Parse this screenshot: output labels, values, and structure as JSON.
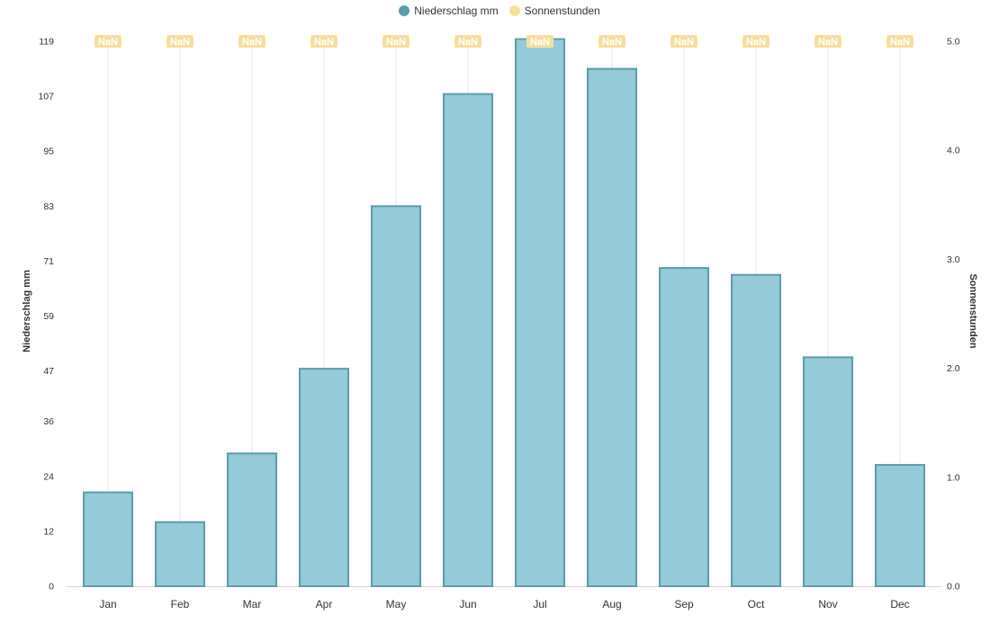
{
  "legend": {
    "items": [
      {
        "label": "Niederschlag mm",
        "color": "#5b9cad"
      },
      {
        "label": "Sonnenstunden",
        "color": "#f6df9b"
      }
    ]
  },
  "chart_data": {
    "type": "bar",
    "categories": [
      "Jan",
      "Feb",
      "Mar",
      "Apr",
      "May",
      "Jun",
      "Jul",
      "Aug",
      "Sep",
      "Oct",
      "Nov",
      "Dec"
    ],
    "series": [
      {
        "name": "Niederschlag mm",
        "type": "bar",
        "axis": "left",
        "values": [
          20.5,
          14,
          29,
          47.5,
          83,
          107.5,
          119.5,
          113,
          69.5,
          68,
          50,
          26.5
        ],
        "fill": "#96cad9",
        "stroke": "#5b9cad"
      },
      {
        "name": "Sonnenstunden",
        "type": "line",
        "axis": "right",
        "values": [
          null,
          null,
          null,
          null,
          null,
          null,
          null,
          null,
          null,
          null,
          null,
          null
        ],
        "labels": [
          "NaN",
          "NaN",
          "NaN",
          "NaN",
          "NaN",
          "NaN",
          "NaN",
          "NaN",
          "NaN",
          "NaN",
          "NaN",
          "NaN"
        ],
        "color": "#f6df9b"
      }
    ],
    "y_left": {
      "label": "Niederschlag mm",
      "ticks": [
        0,
        12,
        24,
        36,
        47,
        59,
        71,
        83,
        95,
        107,
        119
      ],
      "ylim": [
        0,
        119
      ]
    },
    "y_right": {
      "label": "Sonnenstunden",
      "ticks": [
        "0.0",
        "1.0",
        "2.0",
        "3.0",
        "4.0",
        "5.0"
      ],
      "ylim": [
        0,
        5
      ]
    },
    "grid": "vertical",
    "legend_position": "top-center"
  }
}
